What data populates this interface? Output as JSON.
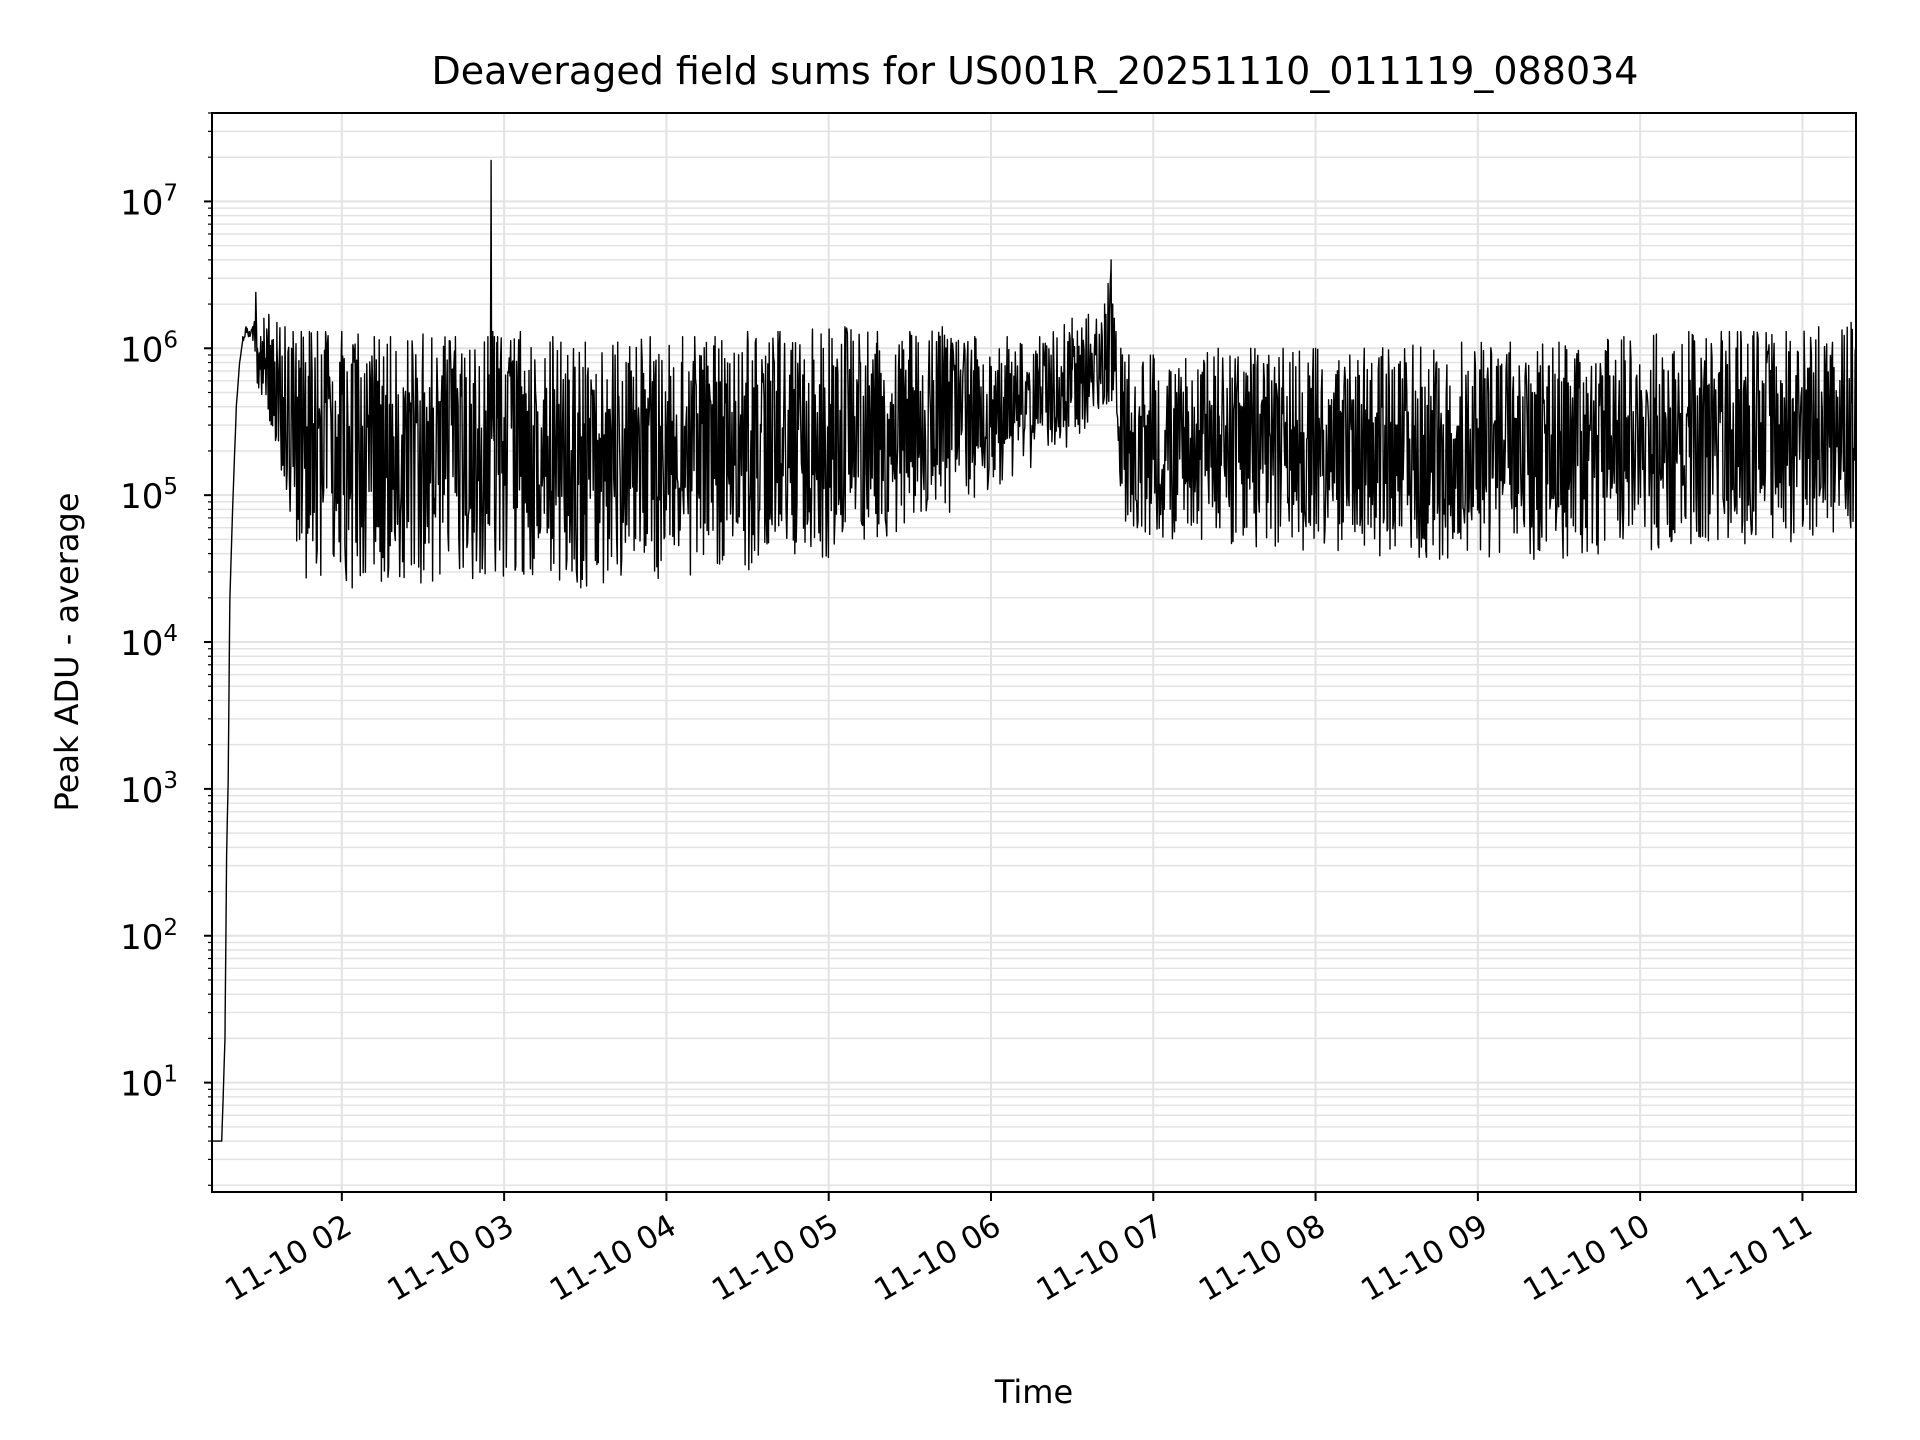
{
  "colors": {
    "line": "#000000",
    "grid": "#e3e3e3",
    "axes": "#000000",
    "background": "#ffffff"
  },
  "chart_data": {
    "type": "line",
    "title": "Deaveraged field sums for US001R_20251110_011119_088034",
    "xlabel": "Time",
    "ylabel": "Peak ADU - average",
    "yscale": "log",
    "ylim": [
      1.8,
      40000000
    ],
    "xlim_hours": [
      1.2,
      11.33
    ],
    "grid": true,
    "x_tick_values": [
      2,
      3,
      4,
      5,
      6,
      7,
      8,
      9,
      10,
      11
    ],
    "x_tick_labels": [
      "11-10 02",
      "11-10 03",
      "11-10 04",
      "11-10 05",
      "11-10 06",
      "11-10 07",
      "11-10 08",
      "11-10 09",
      "11-10 10",
      "11-10 11"
    ],
    "y_ticks": [
      {
        "value": 10,
        "base": "10",
        "exp": "1"
      },
      {
        "value": 100,
        "base": "10",
        "exp": "2"
      },
      {
        "value": 1000,
        "base": "10",
        "exp": "3"
      },
      {
        "value": 10000,
        "base": "10",
        "exp": "4"
      },
      {
        "value": 100000,
        "base": "10",
        "exp": "5"
      },
      {
        "value": 1000000,
        "base": "10",
        "exp": "6"
      },
      {
        "value": 10000000,
        "base": "10",
        "exp": "7"
      }
    ],
    "series": [
      {
        "name": "Deaveraged field sum",
        "x_hours": [
          1.2,
          1.22,
          1.24,
          1.25,
          1.26,
          1.28,
          1.29,
          1.3,
          1.31,
          1.33,
          1.35,
          1.37,
          1.39,
          1.41,
          1.43,
          1.45,
          1.47,
          1.48,
          1.5,
          1.52,
          1.55,
          1.6,
          1.65,
          1.7,
          1.75,
          1.8,
          1.85,
          1.9,
          2.0,
          2.1,
          2.2,
          2.3,
          2.5,
          2.7,
          2.9,
          2.92,
          2.93,
          2.94,
          2.96,
          3.1,
          3.3,
          3.35,
          3.5,
          3.7,
          3.9,
          4.1,
          4.3,
          4.5,
          4.7,
          4.9,
          5.1,
          5.3,
          5.5,
          5.7,
          5.9,
          6.1,
          6.3,
          6.5,
          6.6,
          6.7,
          6.74,
          6.75,
          6.76,
          6.77,
          6.8,
          6.81,
          6.85,
          7.0,
          7.2,
          7.4,
          7.6,
          7.8,
          8.0,
          8.3,
          8.6,
          8.9,
          9.2,
          9.5,
          9.8,
          9.9,
          10.1,
          10.3,
          10.5,
          10.55,
          10.6,
          10.62,
          10.7,
          10.9,
          11.1,
          11.3,
          11.33
        ],
        "y_max": [
          4,
          4,
          4,
          4,
          4,
          20,
          350,
          1200,
          20000,
          100000,
          400000,
          800000,
          1200000,
          1400000,
          1300000,
          1400000,
          2400000,
          1000000,
          1200000,
          1600000,
          1700000,
          1500000,
          1400000,
          1300000,
          1300000,
          1300000,
          1300000,
          1300000,
          1300000,
          1250000,
          1200000,
          1200000,
          1250000,
          1200000,
          1200000,
          19000000,
          1300000,
          1200000,
          1200000,
          1300000,
          1200000,
          1100000,
          1100000,
          1100000,
          1200000,
          1200000,
          1200000,
          1300000,
          1300000,
          1350000,
          1400000,
          1300000,
          1300000,
          1400000,
          1200000,
          1200000,
          1200000,
          1600000,
          1700000,
          2000000,
          4000000,
          2000000,
          1600000,
          1300000,
          1000000,
          900000,
          900000,
          900000,
          850000,
          1000000,
          1000000,
          1000000,
          1000000,
          1000000,
          1050000,
          1100000,
          1100000,
          1100000,
          1150000,
          1200000,
          1250000,
          1300000,
          1300000,
          1300000,
          1300000,
          1300000,
          1300000,
          1300000,
          1400000,
          1500000,
          1600000
        ],
        "y_min": [
          4,
          4,
          4,
          4,
          4,
          20,
          350,
          1200,
          20000,
          100000,
          400000,
          800000,
          1100000,
          1200000,
          1200000,
          1200000,
          600000,
          550000,
          500000,
          400000,
          300000,
          200000,
          100000,
          50000,
          30000,
          25000,
          25000,
          24000,
          22000,
          22000,
          23000,
          23000,
          24000,
          25000,
          28000,
          100000,
          30000,
          28000,
          28000,
          27000,
          25000,
          20000,
          24000,
          25000,
          25000,
          28000,
          30000,
          30000,
          32000,
          35000,
          40000,
          50000,
          60000,
          70000,
          90000,
          120000,
          160000,
          220000,
          300000,
          350000,
          400000,
          500000,
          500000,
          450000,
          80000,
          70000,
          60000,
          50000,
          50000,
          48000,
          45000,
          42000,
          40000,
          38000,
          36000,
          35000,
          35000,
          36000,
          38000,
          40000,
          42000,
          42000,
          42000,
          42000,
          42000,
          42000,
          45000,
          45000,
          48000,
          55000,
          60000
        ]
      }
    ]
  }
}
